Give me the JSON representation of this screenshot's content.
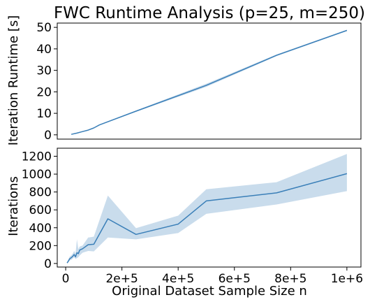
{
  "colors": {
    "line": "#3a7fb8",
    "band": "#b7d0e6"
  },
  "chart_data": [
    {
      "type": "line",
      "title": "FWC Runtime Analysis (p=25, m=250)",
      "xlabel": "",
      "ylabel": "Iteration Runtime [s]",
      "xlim": [
        -30000,
        1050000
      ],
      "ylim": [
        -2,
        52
      ],
      "yticks": [
        0,
        10,
        20,
        30,
        40,
        50
      ],
      "show_xticks": false,
      "grid": false,
      "series": [
        {
          "x": [
            20000,
            40000,
            60000,
            80000,
            100000,
            120000,
            250000,
            500000,
            750000,
            1000000
          ],
          "y": [
            0.2,
            0.8,
            1.5,
            2.2,
            3.2,
            4.6,
            11.0,
            23.0,
            37.0,
            48.6
          ],
          "ci_low": [
            0.1,
            0.7,
            1.3,
            2.0,
            3.0,
            4.4,
            10.7,
            22.3,
            36.6,
            48.3
          ],
          "ci_high": [
            0.3,
            0.9,
            1.7,
            2.4,
            3.4,
            4.8,
            11.3,
            23.8,
            37.4,
            48.9
          ]
        }
      ]
    },
    {
      "type": "line",
      "title": "",
      "xlabel": "Original Dataset Sample Size n",
      "ylabel": "Iterations",
      "xlim": [
        -30000,
        1050000
      ],
      "ylim": [
        -40,
        1290
      ],
      "yticks": [
        0,
        200,
        400,
        600,
        800,
        1000,
        1200
      ],
      "xticks": [
        0,
        200000,
        400000,
        600000,
        800000,
        1000000
      ],
      "xtick_labels": [
        "0",
        "2e+5",
        "4e+5",
        "6e+5",
        "8e+5",
        "1e+6"
      ],
      "grid": false,
      "series": [
        {
          "x": [
            5000,
            10000,
            15000,
            20000,
            25000,
            30000,
            35000,
            40000,
            45000,
            50000,
            60000,
            80000,
            100000,
            150000,
            250000,
            400000,
            500000,
            750000,
            1000000
          ],
          "y": [
            5,
            30,
            55,
            65,
            80,
            100,
            75,
            120,
            110,
            150,
            165,
            210,
            215,
            500,
            325,
            440,
            700,
            790,
            1005
          ],
          "ci_low": [
            0,
            15,
            35,
            40,
            55,
            70,
            50,
            60,
            70,
            90,
            120,
            140,
            135,
            290,
            270,
            340,
            555,
            660,
            810
          ],
          "ci_high": [
            10,
            50,
            80,
            90,
            110,
            140,
            110,
            270,
            160,
            190,
            200,
            290,
            300,
            760,
            395,
            535,
            830,
            910,
            1225
          ]
        }
      ]
    }
  ]
}
